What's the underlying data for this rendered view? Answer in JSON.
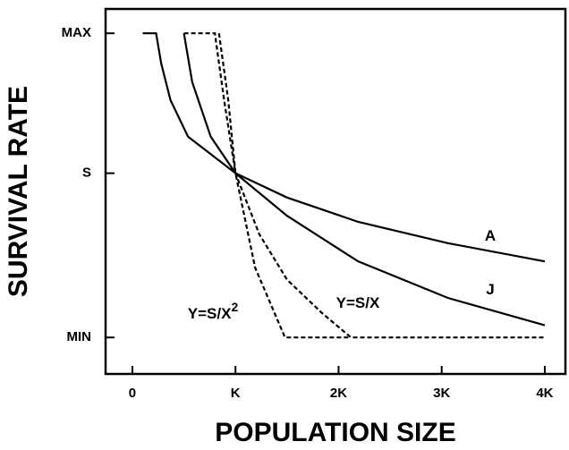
{
  "chart_data": {
    "type": "line",
    "x_label": "POPULATION SIZE",
    "y_label": "SURVIVAL RATE",
    "xlim": [
      -0.26,
      4.2
    ],
    "ylim": [
      -12,
      108
    ],
    "xticks": [
      0,
      {
        "value": 1,
        "label": "K"
      },
      {
        "value": 2,
        "label": "2K"
      },
      {
        "value": 3,
        "label": "3K"
      },
      {
        "value": 4,
        "label": "4K"
      }
    ],
    "yticks": [
      {
        "value": 0,
        "label": "MIN"
      },
      {
        "value": 54,
        "label": "S"
      },
      {
        "value": 100,
        "label": "MAX"
      }
    ],
    "series": [
      {
        "name": "A",
        "color": "#000000",
        "dashed": false,
        "x": [
          0.1,
          0.23,
          0.28,
          0.37,
          0.54,
          1,
          1.5,
          2.19,
          3.06,
          4.0
        ],
        "values": [
          100,
          100,
          90,
          78,
          66,
          54,
          46,
          38,
          31,
          25
        ]
      },
      {
        "name": "J",
        "color": "#000000",
        "dashed": false,
        "x": [
          0.5,
          0.58,
          0.76,
          1,
          1.5,
          2.19,
          3.06,
          4.0
        ],
        "values": [
          100,
          84,
          66,
          54,
          40,
          25,
          13,
          4
        ]
      },
      {
        "name": "Y=S/X",
        "color": "#000000",
        "dashed": true,
        "x": [
          0.5,
          0.8,
          0.89,
          1,
          1.23,
          1.5,
          1.84,
          2.12,
          4.0
        ],
        "values": [
          100,
          100,
          78,
          54,
          34,
          19,
          8,
          0,
          0
        ]
      },
      {
        "name": "Y=S/X",
        "sup": "2",
        "color": "#000000",
        "dashed": true,
        "x": [
          0.84,
          0.93,
          1,
          1.19,
          1.48,
          2.12
        ],
        "values": [
          100,
          78,
          54,
          23,
          0,
          0
        ]
      }
    ]
  }
}
